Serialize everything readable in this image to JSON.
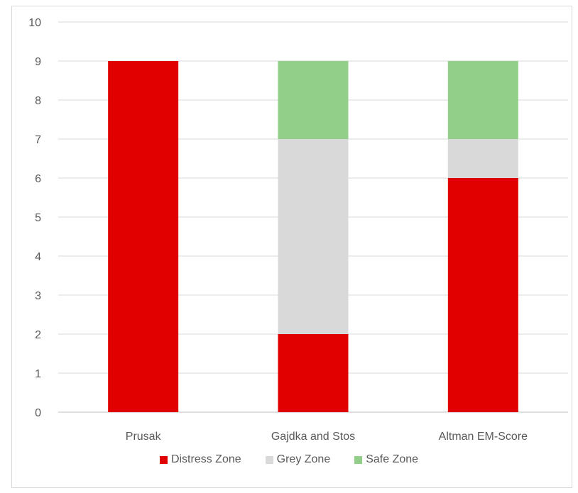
{
  "chart_data": {
    "type": "bar",
    "stacked": true,
    "categories": [
      "Prusak",
      "Gajdka and Stos",
      "Altman EM-Score"
    ],
    "series": [
      {
        "name": "Distress Zone",
        "color": "#e00000",
        "values": [
          9,
          2,
          6
        ]
      },
      {
        "name": "Grey Zone",
        "color": "#d9d9d9",
        "values": [
          0,
          5,
          1
        ]
      },
      {
        "name": "Safe Zone",
        "color": "#92d08a",
        "values": [
          0,
          2,
          2
        ]
      }
    ],
    "ylim": [
      0,
      10
    ],
    "yticks": [
      "0",
      "1",
      "2",
      "3",
      "4",
      "5",
      "6",
      "7",
      "8",
      "9",
      "10"
    ],
    "grid": true,
    "legend_position": "bottom",
    "title": "",
    "xlabel": "",
    "ylabel": ""
  }
}
